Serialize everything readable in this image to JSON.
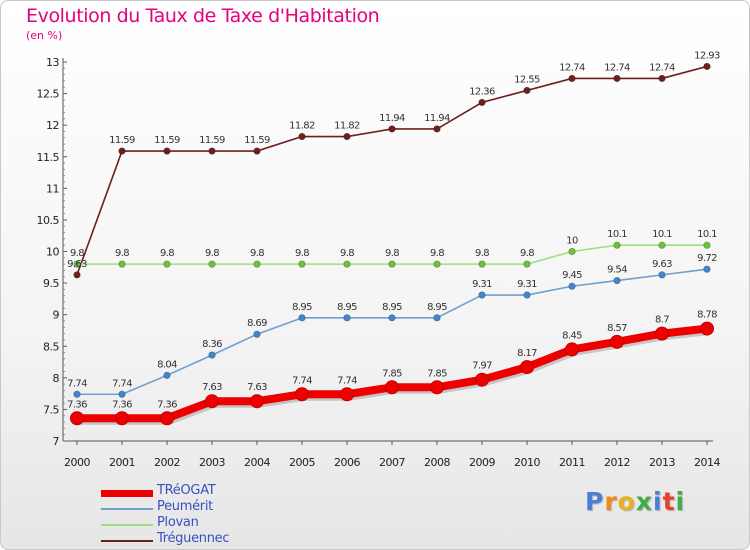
{
  "title": "Evolution du Taux de Taxe d'Habitation",
  "unit_label": "(en %)",
  "brand": "Proxiti",
  "chart_data": {
    "type": "line",
    "x": [
      2000,
      2001,
      2002,
      2003,
      2004,
      2005,
      2006,
      2007,
      2008,
      2009,
      2010,
      2011,
      2012,
      2013,
      2014
    ],
    "ylim": [
      7,
      13
    ],
    "yticks": [
      7,
      7.5,
      8,
      8.5,
      9,
      9.5,
      10,
      10.5,
      11,
      11.5,
      12,
      12.5,
      13
    ],
    "grid": false,
    "legend_position": "bottom-left",
    "series": [
      {
        "name": "Tréguennec",
        "color": "#6e1f1f",
        "marker": "#6e1f1f",
        "values": [
          9.63,
          11.59,
          11.59,
          11.59,
          11.59,
          11.82,
          11.82,
          11.94,
          11.94,
          12.36,
          12.55,
          12.74,
          12.74,
          12.74,
          12.93
        ],
        "labels": [
          "9.63",
          "11.59",
          "11.59",
          "11.59",
          "11.59",
          "11.82",
          "11.82",
          "11.94",
          "11.94",
          "12.36",
          "12.55",
          "12.74",
          "12.74",
          "12.74",
          "12.93"
        ]
      },
      {
        "name": "Plovan",
        "color": "#9de07f",
        "marker": "#6cc23a",
        "values": [
          9.8,
          9.8,
          9.8,
          9.8,
          9.8,
          9.8,
          9.8,
          9.8,
          9.8,
          9.8,
          9.8,
          10,
          10.1,
          10.1,
          10.1
        ],
        "labels": [
          "9.8",
          "9.8",
          "9.8",
          "9.8",
          "9.8",
          "9.8",
          "9.8",
          "9.8",
          "9.8",
          "9.8",
          "9.8",
          "10",
          "10.1",
          "10.1",
          "10.1"
        ]
      },
      {
        "name": "Peumérit",
        "color": "#6f9fcf",
        "marker": "#3f86cc",
        "values": [
          7.74,
          7.74,
          8.04,
          8.36,
          8.69,
          8.95,
          8.95,
          8.95,
          8.95,
          9.31,
          9.31,
          9.45,
          9.54,
          9.63,
          9.72
        ],
        "labels": [
          "7.74",
          "7.74",
          "8.04",
          "8.36",
          "8.69",
          "8.95",
          "8.95",
          "8.95",
          "8.95",
          "9.31",
          "9.31",
          "9.45",
          "9.54",
          "9.63",
          "9.72"
        ]
      },
      {
        "name": "TRéOGAT",
        "color": "#ee0000",
        "marker": "#ee0000",
        "values": [
          7.36,
          7.36,
          7.36,
          7.63,
          7.63,
          7.74,
          7.74,
          7.85,
          7.85,
          7.97,
          8.17,
          8.45,
          8.57,
          8.7,
          8.78
        ],
        "labels": [
          "7.36",
          "7.36",
          "7.36",
          "7.63",
          "7.63",
          "7.74",
          "7.74",
          "7.85",
          "7.85",
          "7.97",
          "8.17",
          "8.45",
          "8.57",
          "8.7",
          "8.78"
        ]
      }
    ],
    "legend": [
      "TRéOGAT",
      "Peumérit",
      "Plovan",
      "Tréguennec"
    ]
  }
}
